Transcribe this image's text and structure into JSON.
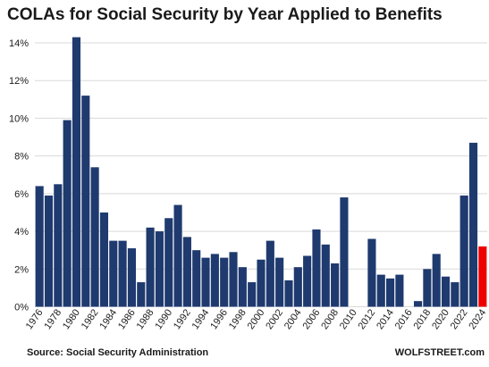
{
  "chart_data": {
    "type": "bar",
    "title": "COLAs for Social Security by Year Applied to Benefits",
    "xlabel": "",
    "ylabel": "",
    "ylim": [
      0,
      15
    ],
    "yticks": [
      "0%",
      "2%",
      "4%",
      "6%",
      "8%",
      "10%",
      "12%",
      "14%"
    ],
    "ytick_values": [
      0,
      2,
      4,
      6,
      8,
      10,
      12,
      14
    ],
    "y_unit": "%",
    "grid": "horizontal",
    "categories": [
      "1976",
      "1977",
      "1978",
      "1979",
      "1980",
      "1981",
      "1982",
      "1983",
      "1984",
      "1985",
      "1986",
      "1987",
      "1988",
      "1989",
      "1990",
      "1991",
      "1992",
      "1993",
      "1994",
      "1995",
      "1996",
      "1997",
      "1998",
      "1999",
      "2000",
      "2001",
      "2002",
      "2003",
      "2004",
      "2005",
      "2006",
      "2007",
      "2008",
      "2009",
      "2010",
      "2011",
      "2012",
      "2013",
      "2014",
      "2015",
      "2016",
      "2017",
      "2018",
      "2019",
      "2020",
      "2021",
      "2022",
      "2023",
      "2024"
    ],
    "tick_labels_shown": [
      "1976",
      "1978",
      "1980",
      "1982",
      "1984",
      "1986",
      "1988",
      "1990",
      "1992",
      "1994",
      "1996",
      "1998",
      "2000",
      "2002",
      "2004",
      "2006",
      "2008",
      "2010",
      "2012",
      "2014",
      "2016",
      "2018",
      "2020",
      "2022",
      "2024"
    ],
    "values": [
      6.4,
      5.9,
      6.5,
      9.9,
      14.3,
      11.2,
      7.4,
      5.0,
      3.5,
      3.5,
      3.1,
      1.3,
      4.2,
      4.0,
      4.7,
      5.4,
      3.7,
      3.0,
      2.6,
      2.8,
      2.6,
      2.9,
      2.1,
      1.3,
      2.5,
      3.5,
      2.6,
      1.4,
      2.1,
      2.7,
      4.1,
      3.3,
      2.3,
      5.8,
      0,
      0,
      3.6,
      1.7,
      1.5,
      1.7,
      0,
      0.3,
      2.0,
      2.8,
      1.6,
      1.3,
      5.9,
      8.7,
      3.2
    ],
    "colors": {
      "default": "#1f3a6e",
      "highlight": "#ee0000",
      "highlight_category": "2024",
      "grid": "#d9d9d9"
    }
  },
  "footer": {
    "source": "Source: Social  Security Administration",
    "watermark": "WOLFSTREET.com"
  }
}
